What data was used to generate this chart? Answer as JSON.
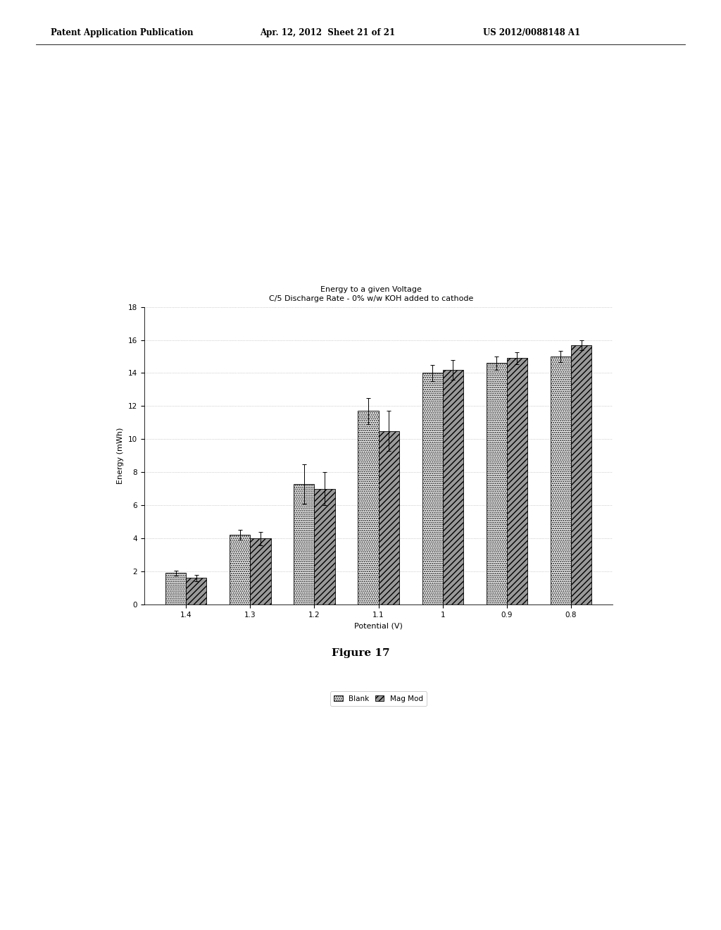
{
  "title_line1": "Energy to a given Voltage",
  "title_line2": "C/5 Discharge Rate - 0% w/w KOH added to cathode",
  "xlabel": "Potential (V)",
  "ylabel": "Energy (mWh)",
  "x_labels": [
    "1.4",
    "1.3",
    "1.2",
    "1.1",
    "1",
    "0.9",
    "0.8"
  ],
  "blank_values": [
    1.9,
    4.2,
    7.3,
    11.7,
    14.0,
    14.6,
    15.0
  ],
  "magmod_values": [
    1.6,
    4.0,
    7.0,
    10.5,
    14.2,
    14.9,
    15.7
  ],
  "blank_errors": [
    0.15,
    0.3,
    1.2,
    0.8,
    0.5,
    0.4,
    0.35
  ],
  "magmod_errors": [
    0.2,
    0.4,
    1.0,
    1.2,
    0.6,
    0.35,
    0.3
  ],
  "ylim": [
    0,
    18
  ],
  "yticks": [
    0,
    2,
    4,
    6,
    8,
    10,
    12,
    14,
    16,
    18
  ],
  "legend_labels": [
    "Blank",
    "Mag Mod"
  ],
  "figure_label": "Figure 17",
  "header_left": "Patent Application Publication",
  "header_center": "Apr. 12, 2012  Sheet 21 of 21",
  "header_right": "US 2012/0088148 A1",
  "bg_color": "#ffffff",
  "bar_width": 0.32
}
